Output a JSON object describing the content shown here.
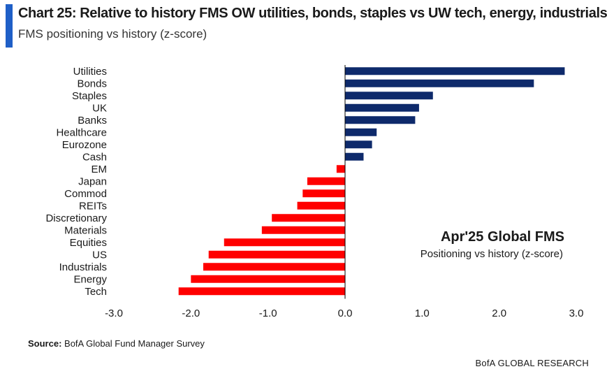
{
  "header": {
    "title": "Chart 25: Relative to history FMS OW utilities, bonds, staples vs UW tech, energy, industrials",
    "subtitle": "FMS positioning vs history (z-score)"
  },
  "colors": {
    "accent": "#1f5fc7",
    "positive": "#0e2a6b",
    "negative": "#ff0000",
    "axis": "#000000"
  },
  "chart_data": {
    "type": "bar",
    "orientation": "horizontal",
    "categories": [
      "Utilities",
      "Bonds",
      "Staples",
      "UK",
      "Banks",
      "Healthcare",
      "Eurozone",
      "Cash",
      "EM",
      "Japan",
      "Commod",
      "REITs",
      "Discretionary",
      "Materials",
      "Equities",
      "US",
      "Industrials",
      "Energy",
      "Tech"
    ],
    "values": [
      2.85,
      2.45,
      1.14,
      0.96,
      0.91,
      0.41,
      0.35,
      0.24,
      -0.11,
      -0.49,
      -0.55,
      -0.62,
      -0.95,
      -1.08,
      -1.57,
      -1.77,
      -1.84,
      -2.0,
      -2.16
    ],
    "xlim": [
      -3.0,
      3.0
    ],
    "xticks": [
      "-3.0",
      "-2.0",
      "-1.0",
      "0.0",
      "1.0",
      "2.0",
      "3.0"
    ],
    "xtick_values": [
      -3,
      -2,
      -1,
      0,
      1,
      2,
      3
    ],
    "annotation": {
      "title": "Apr'25 Global FMS",
      "subtitle": "Positioning vs history (z-score)"
    },
    "grid": false,
    "legend": "none"
  },
  "footer": {
    "source_label": "Source:",
    "source_text": " BofA Global Fund Manager Survey",
    "brand": "BofA GLOBAL RESEARCH"
  }
}
